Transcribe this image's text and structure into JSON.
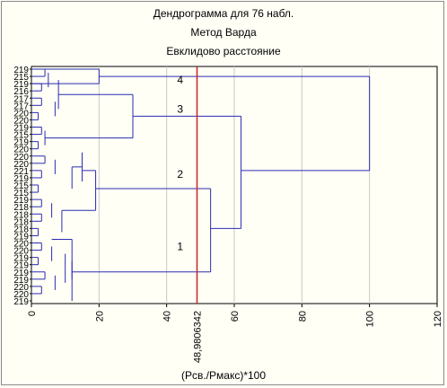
{
  "chart_data": {
    "type": "dendrogram",
    "title": "Дендрограмма для 76 набл.",
    "subtitle_1": "Метод Варда",
    "subtitle_2": "Евклидово расстояние",
    "xlabel": "(Рсв./Рмакс)*100",
    "xlim": [
      0,
      120
    ],
    "xticks": [
      "0",
      "20",
      "40",
      "60",
      "80",
      "100",
      "120"
    ],
    "grid": true,
    "cut_line": {
      "value": 48.9806342,
      "label": "48,9806342",
      "color": "#cc2222"
    },
    "leaf_labels": [
      "219",
      "215",
      "219",
      "216",
      "217",
      "217",
      "220",
      "220",
      "219",
      "215",
      "219",
      "220",
      "220",
      "220",
      "221",
      "219",
      "215",
      "215",
      "219",
      "218",
      "218",
      "218",
      "218",
      "219",
      "220",
      "220",
      "219",
      "219",
      "219",
      "219",
      "220",
      "220",
      "219"
    ],
    "line_color": "#2b2bb3",
    "clusters": [
      {
        "label": "1",
        "merge_height": 53
      },
      {
        "label": "2",
        "merge_height": 53
      },
      {
        "label": "3",
        "merge_height": 62
      },
      {
        "label": "4",
        "merge_height": 100
      }
    ],
    "joins": [
      {
        "x1": 0,
        "x2": 12,
        "y_rows": [
          16,
          20
        ]
      },
      {
        "x1": 0,
        "x2": 20,
        "y_rows": [
          0,
          2
        ]
      },
      {
        "x1": 20,
        "x2": 30,
        "y_rows": [
          2,
          6
        ]
      },
      {
        "x1": 30,
        "x2": 53,
        "y_rows": [
          6,
          14
        ]
      },
      {
        "x1": 53,
        "x2": 62,
        "y_rows": [
          14,
          23
        ]
      },
      {
        "x1": 62,
        "x2": 100,
        "y_rows": [
          1,
          23
        ]
      }
    ]
  }
}
